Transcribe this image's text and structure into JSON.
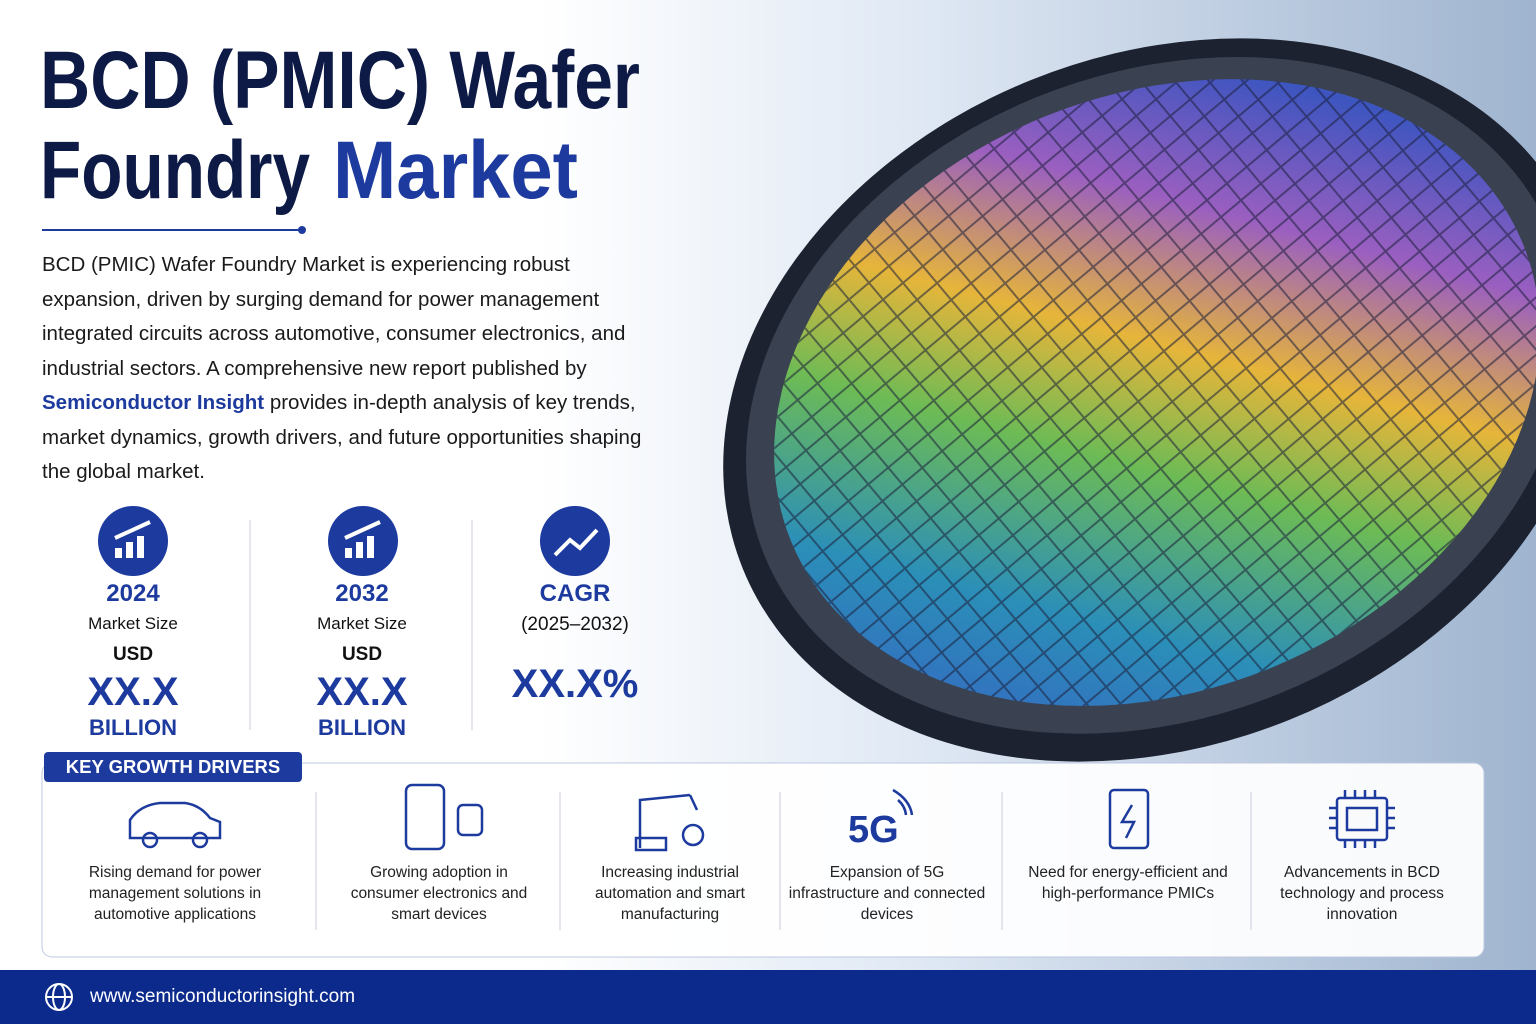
{
  "header": {
    "title_line1": "BCD (PMIC) Wafer",
    "title_line2": "Foundry",
    "title_highlight": "Market"
  },
  "description": {
    "before": "BCD (PMIC) Wafer Foundry Market is experiencing robust expansion, driven by surging demand for power management integrated circuits across automotive, consumer electronics, and industrial sectors. A comprehensive new report published by",
    "highlight": "Semiconductor Insight",
    "after": "provides in-depth analysis of key trends, market dynamics, growth drivers, and future opportunities shaping the global market."
  },
  "stats": [
    {
      "heading": "2024",
      "label": "Market Size",
      "unit": "USD",
      "value": "XX.X",
      "scale": "BILLION"
    },
    {
      "heading": "2032",
      "label": "Market Size",
      "unit": "USD",
      "value": "XX.X",
      "scale": "BILLION"
    },
    {
      "heading": "CAGR",
      "label": "(2025–2032)",
      "value": "XX.X%"
    }
  ],
  "drivers": {
    "title": "KEY GROWTH DRIVERS",
    "items": [
      {
        "text": "Rising demand for power management solutions in automotive applications"
      },
      {
        "text": "Growing adoption in consumer electronics and smart devices"
      },
      {
        "text": "Increasing industrial automation and smart manufacturing"
      },
      {
        "icon_text": "5G",
        "text": "Expansion of 5G infrastructure and connected devices"
      },
      {
        "text": "Need for energy-efficient and high-performance PMICs"
      },
      {
        "text": "Advancements in BCD technology and process innovation"
      }
    ]
  },
  "footer": {
    "url": "www.semiconductorinsight.com"
  }
}
